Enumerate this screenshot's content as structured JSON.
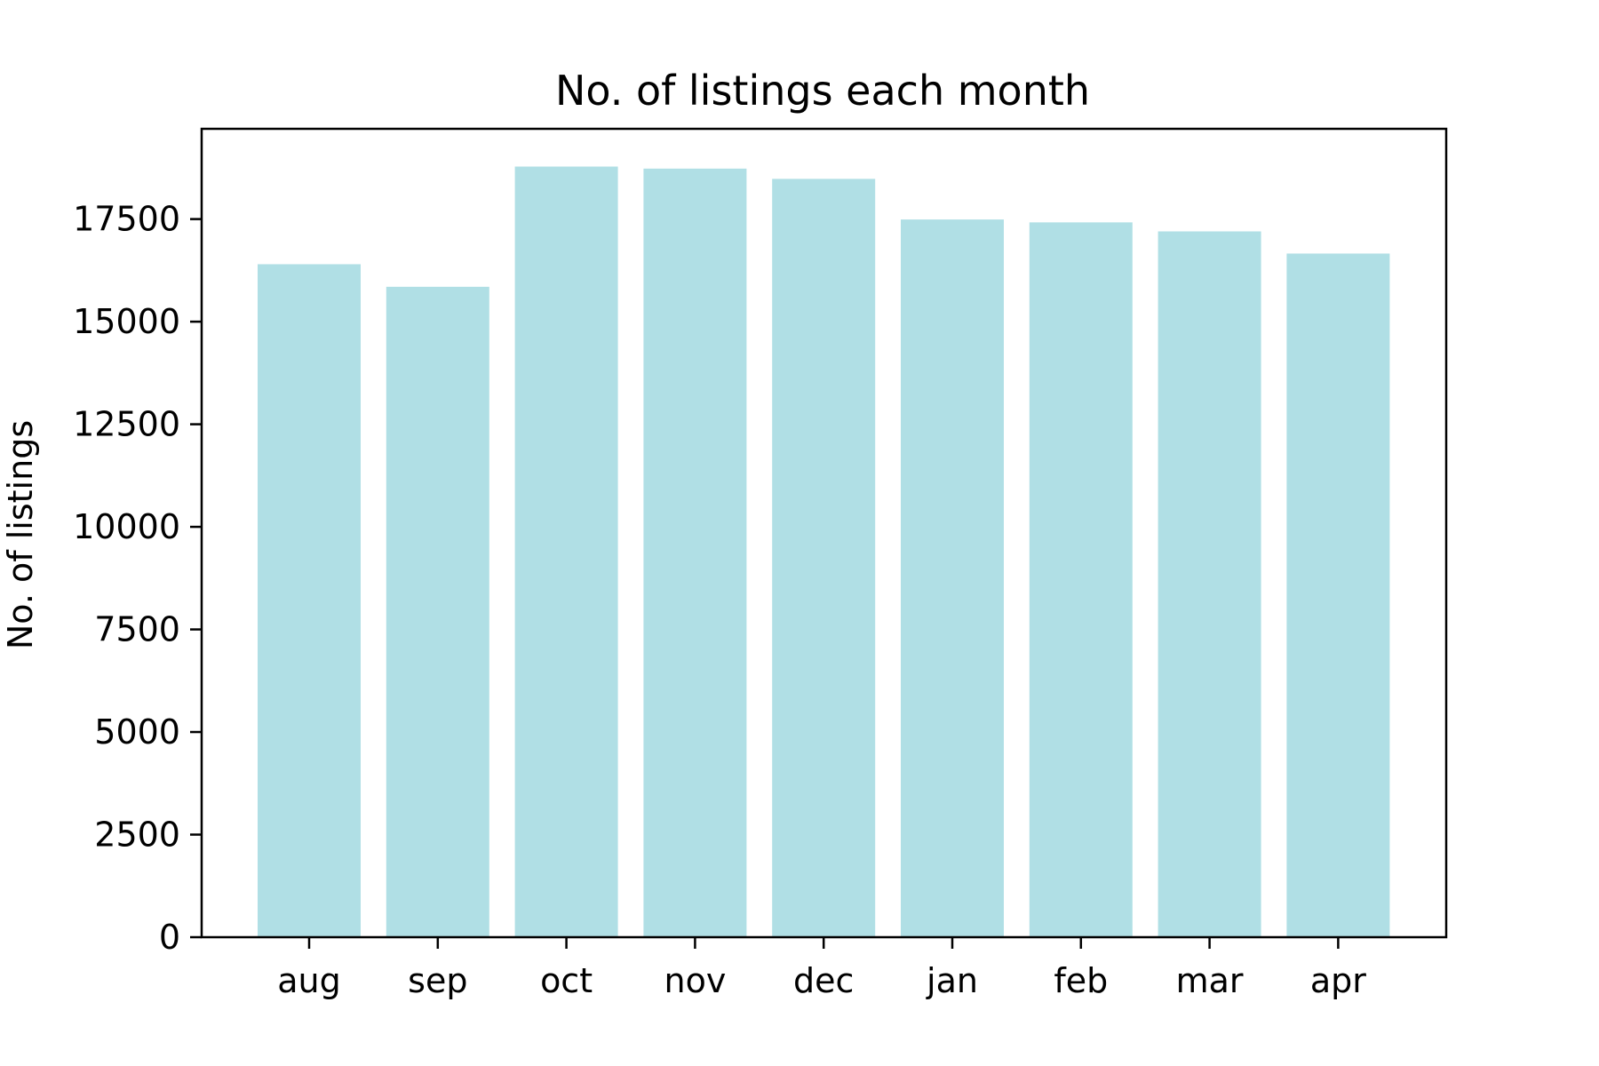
{
  "chart_data": {
    "type": "bar",
    "title": "No. of listings each month",
    "xlabel": "",
    "ylabel": "No. of listings",
    "categories": [
      "aug",
      "sep",
      "oct",
      "nov",
      "dec",
      "jan",
      "feb",
      "mar",
      "apr"
    ],
    "values": [
      16400,
      15850,
      18780,
      18730,
      18480,
      17490,
      17420,
      17200,
      16660
    ],
    "ylim": [
      0,
      19700
    ],
    "yticks": [
      0,
      2500,
      5000,
      7500,
      10000,
      12500,
      15000,
      17500
    ],
    "grid": false,
    "legend": "none",
    "colors": {
      "bar": "#b0dfe5",
      "axes": "#000000",
      "background": "#ffffff"
    }
  }
}
